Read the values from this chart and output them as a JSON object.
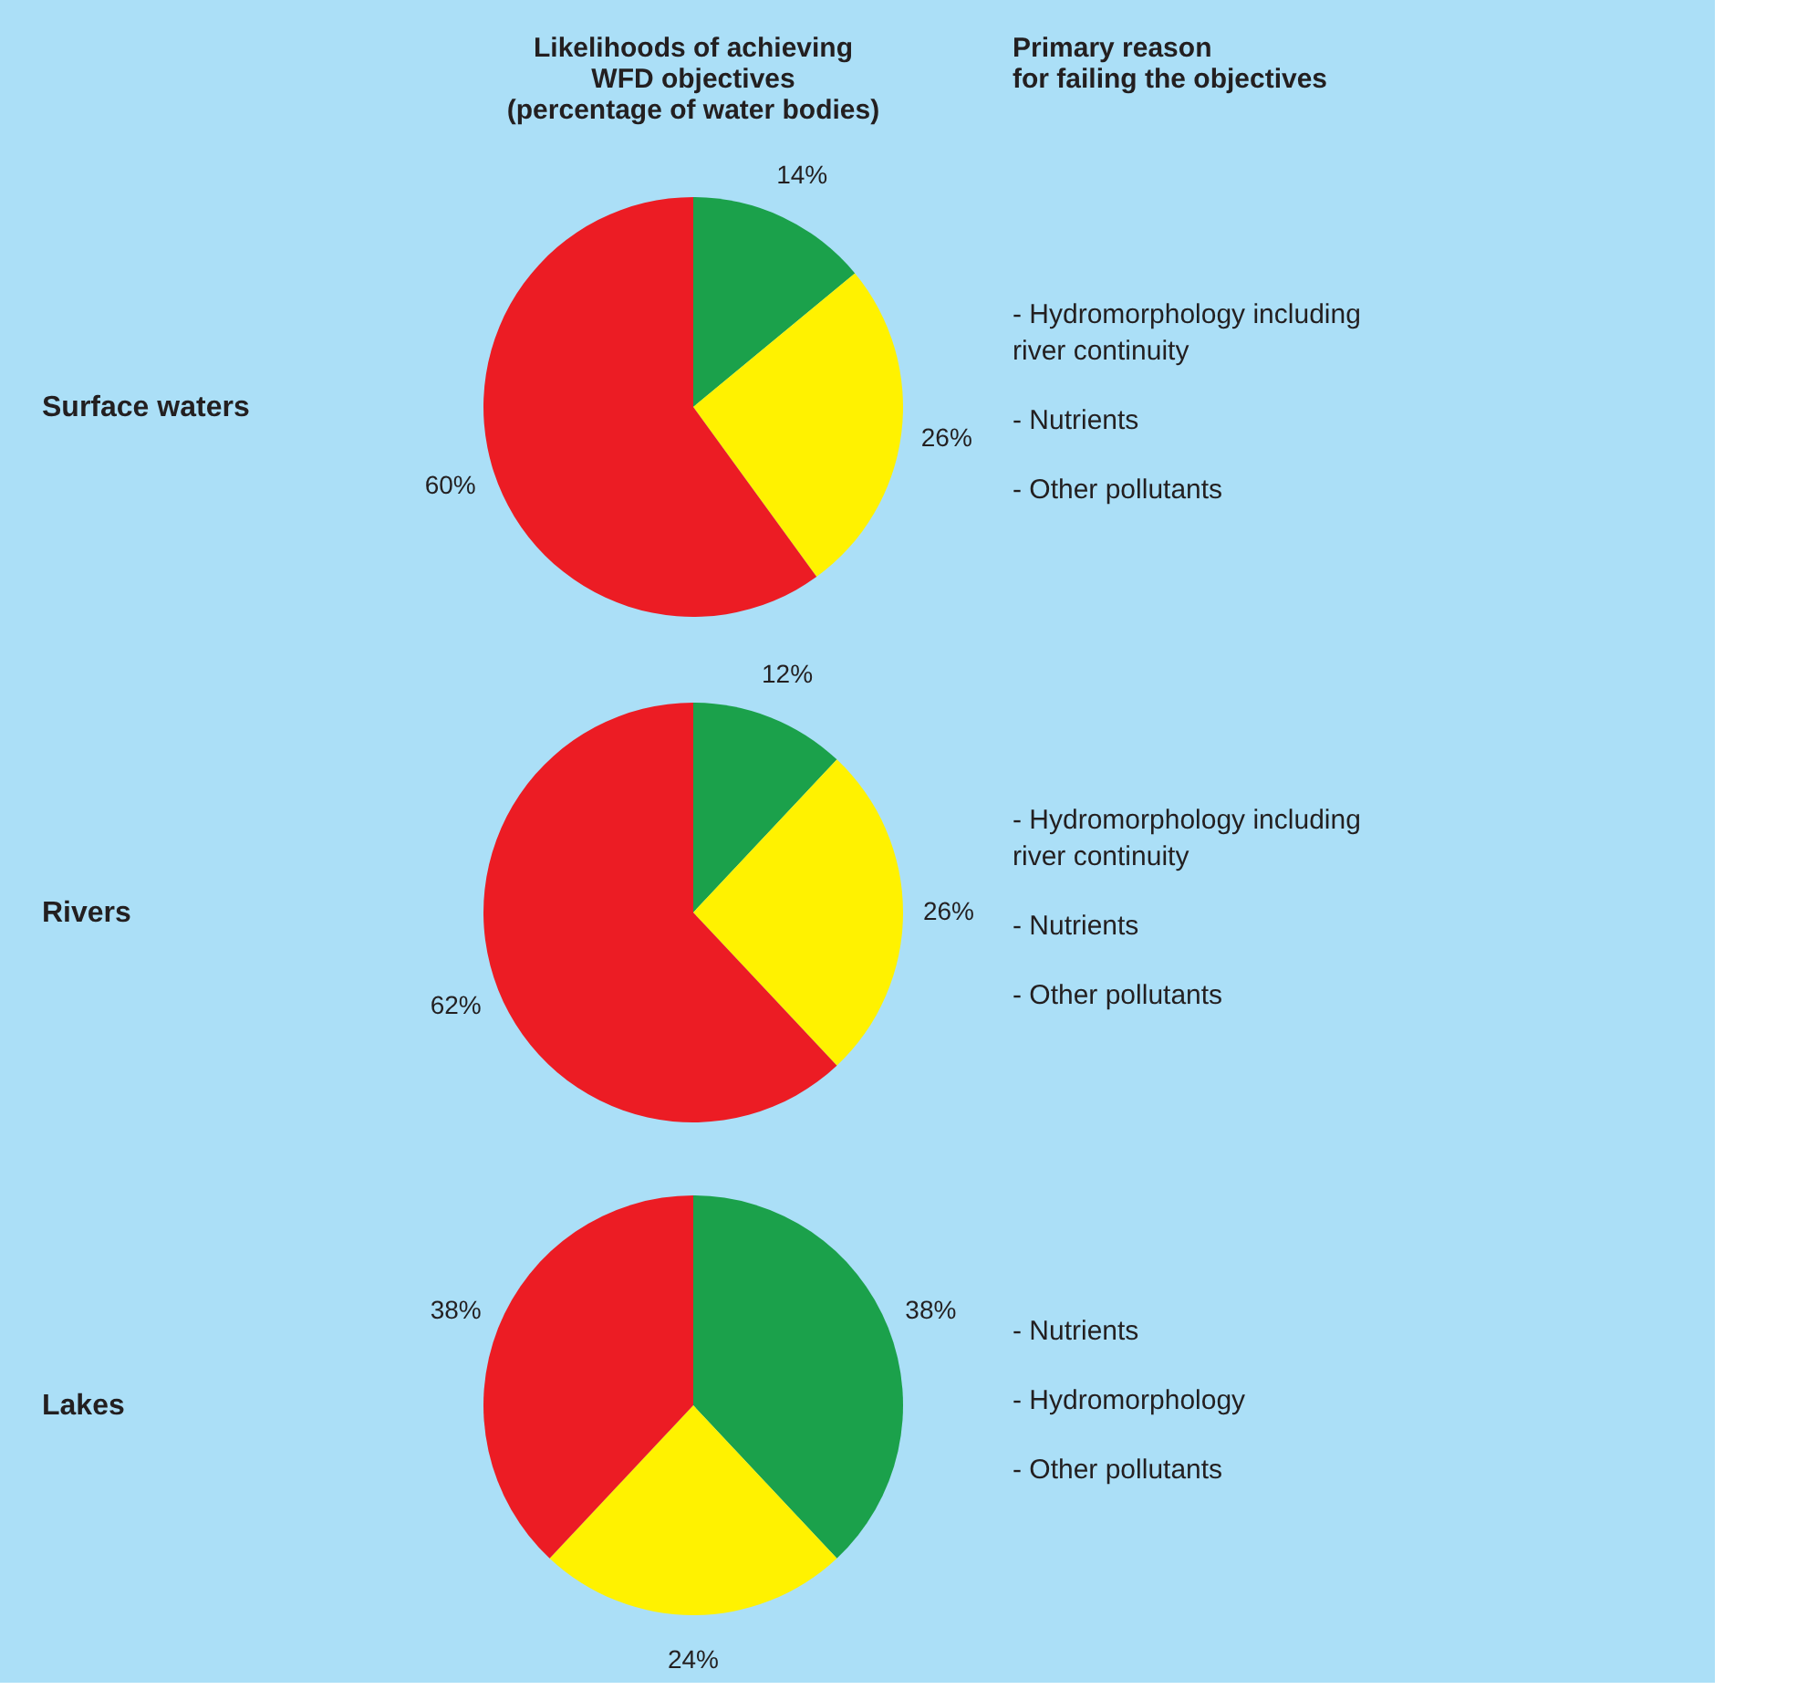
{
  "chart_data": [
    {
      "type": "other",
      "title": "Likelihoods of achieving\nWFD objectives\n(percentage of water bodies)",
      "subtitle": "Primary reason\nfor failing the objectives"
    },
    {
      "type": "pie",
      "title": "Surface waters",
      "categories": [
        null,
        null,
        null
      ],
      "values": [
        14,
        26,
        60
      ],
      "value_labels": [
        "14%",
        "26%",
        "60%"
      ],
      "colors": [
        "#1ba14b",
        "#fff200",
        "#ec1c24"
      ],
      "annotations": [
        "- Hydromorphology including\n  river continuity",
        "- Nutrients",
        "- Other pollutants"
      ]
    },
    {
      "type": "pie",
      "title": "Rivers",
      "categories": [
        null,
        null,
        null
      ],
      "values": [
        12,
        26,
        62
      ],
      "value_labels": [
        "12%",
        "26%",
        "62%"
      ],
      "colors": [
        "#1ba14b",
        "#fff200",
        "#ec1c24"
      ],
      "annotations": [
        "- Hydromorphology including\n  river continuity",
        "- Nutrients",
        "- Other pollutants"
      ]
    },
    {
      "type": "pie",
      "title": "Lakes",
      "categories": [
        null,
        null,
        null
      ],
      "values": [
        38,
        24,
        38
      ],
      "value_labels": [
        "38%",
        "24%",
        "38%"
      ],
      "colors": [
        "#1ba14b",
        "#fff200",
        "#ec1c24"
      ],
      "annotations": [
        "- Nutrients",
        "- Hydromorphology",
        "- Other pollutants"
      ]
    }
  ]
}
